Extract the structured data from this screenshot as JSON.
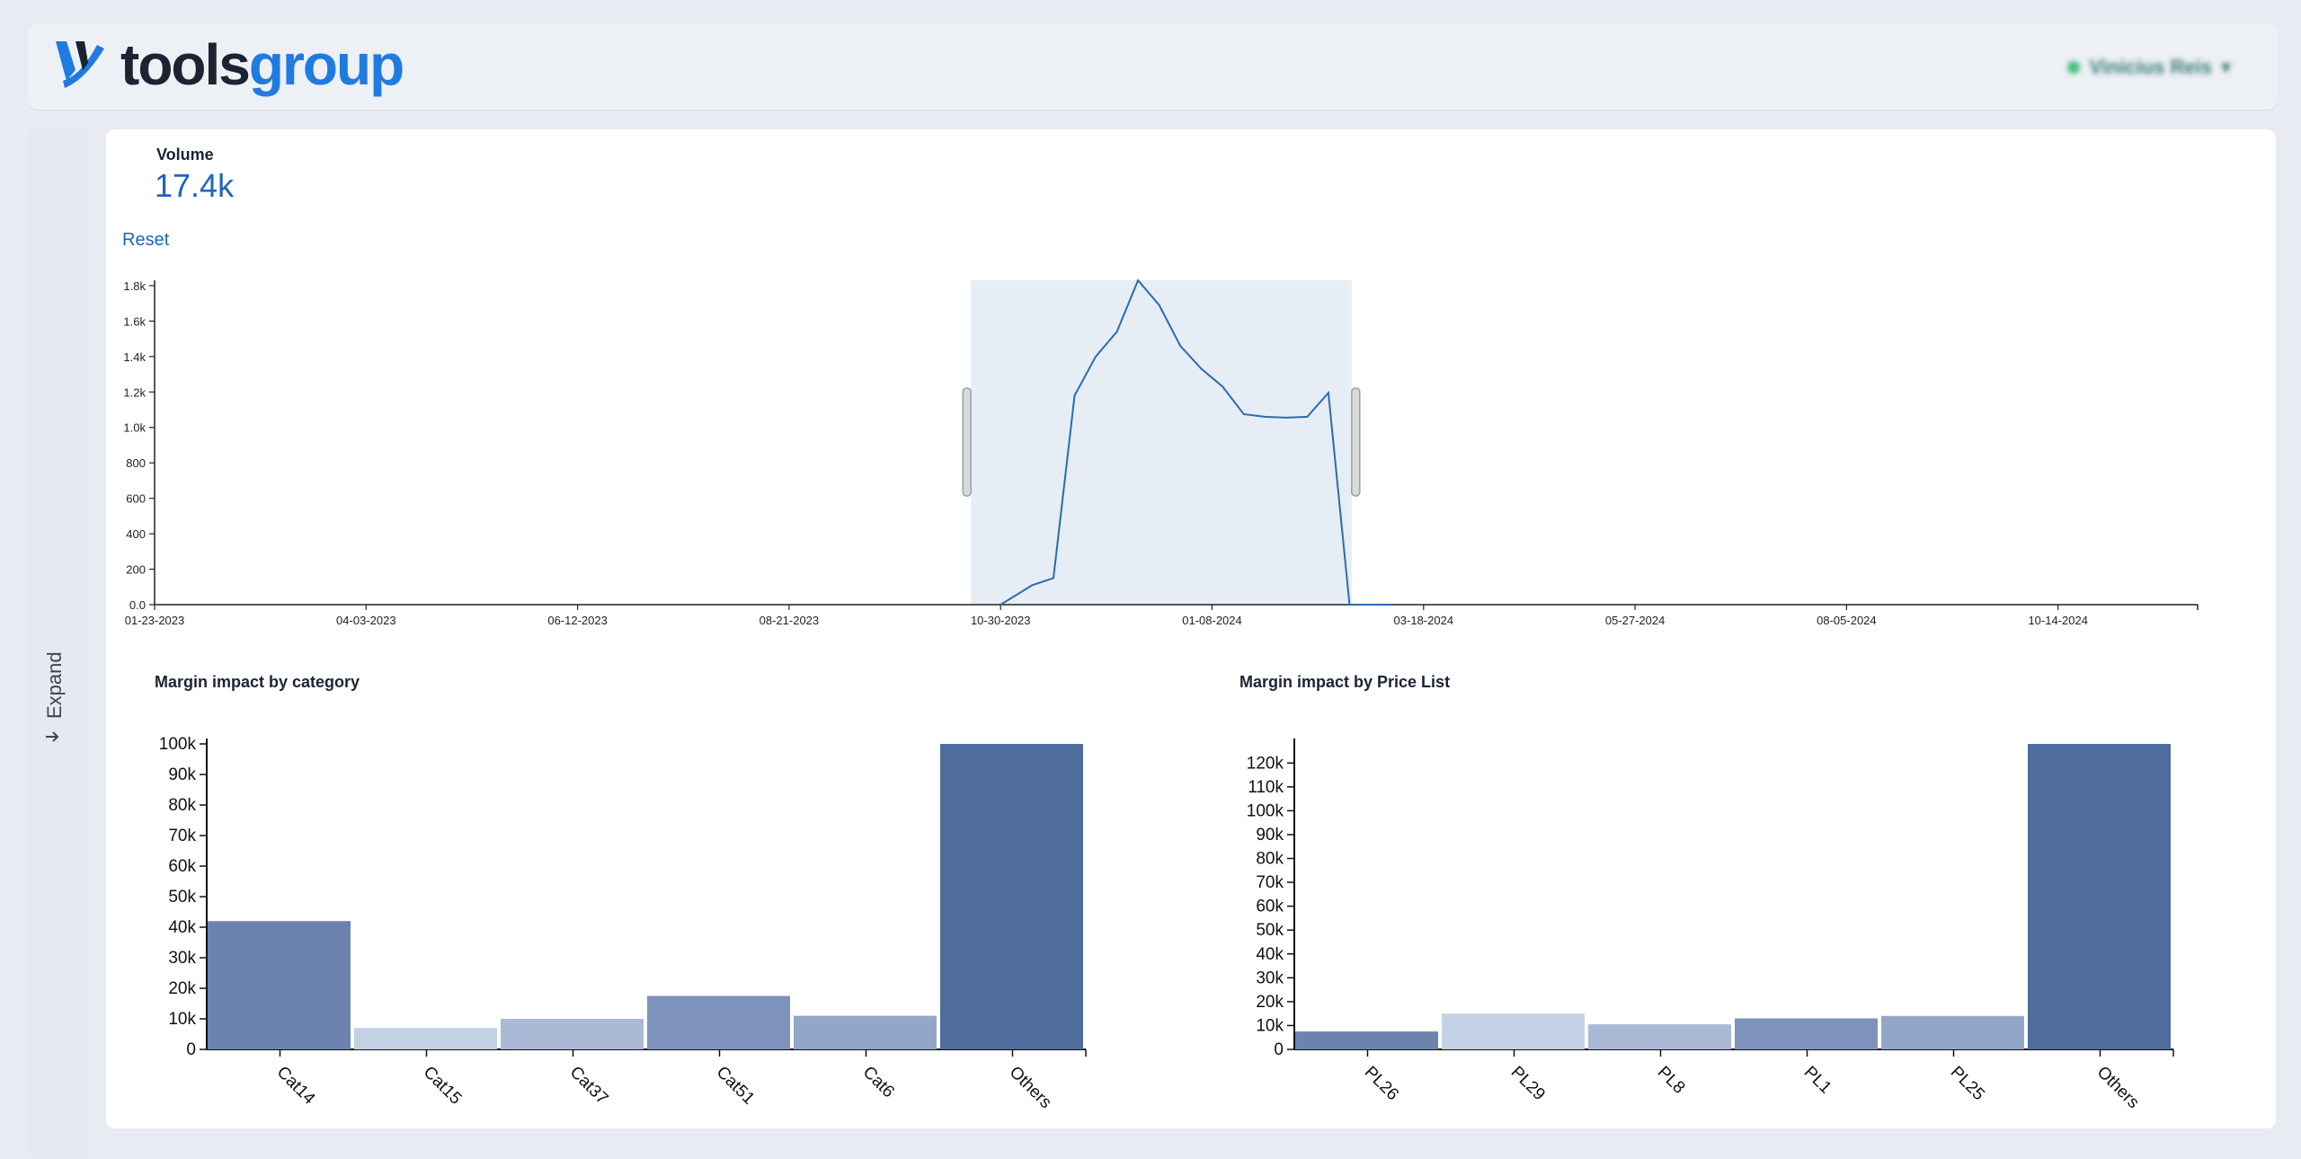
{
  "header": {
    "logo_part1": "tools",
    "logo_part2": "group",
    "user_name": "Vinicius Reis"
  },
  "sidebar": {
    "expand_label": "Expand"
  },
  "kpi": {
    "label": "Volume",
    "value": "17.4k"
  },
  "controls": {
    "reset_label": "Reset"
  },
  "colors": {
    "accent": "#1f66b8",
    "brand": "#1f7be0",
    "line": "#2a6cb0",
    "brush": "#e6edf5",
    "bar_shades": [
      "#6a84ad",
      "#c3d1e4",
      "#a9b9d6",
      "#7e93bb",
      "#93a6c8",
      "#4f6d9c"
    ]
  },
  "chart_data": [
    {
      "type": "line",
      "title": "Volume",
      "x_tick_labels": [
        "01-23-2023",
        "04-03-2023",
        "06-12-2023",
        "08-21-2023",
        "10-30-2023",
        "01-08-2024",
        "03-18-2024",
        "05-27-2024",
        "08-05-2024",
        "10-14-2024"
      ],
      "y_tick_labels": [
        "0.0",
        "200",
        "400",
        "600",
        "800",
        "1.0k",
        "1.2k",
        "1.4k",
        "1.6k",
        "1.8k"
      ],
      "ylim": [
        0,
        1830
      ],
      "xlim_weeks": [
        0,
        96.6
      ],
      "x_weeks": [
        40,
        41.5,
        42.5,
        43.5,
        44.5,
        45.5,
        46.5,
        47.5,
        48.5,
        49.5,
        50.5,
        51.5,
        52.5,
        53.5,
        54.5,
        55.5,
        56.5,
        57.5,
        58.5
      ],
      "values": [
        0,
        110,
        150,
        1180,
        1400,
        1540,
        1830,
        1690,
        1460,
        1330,
        1230,
        1075,
        1060,
        1055,
        1060,
        1195,
        0,
        0,
        0
      ],
      "brush_selection_weeks": [
        38.6,
        56.6
      ]
    },
    {
      "type": "bar",
      "title": "Margin impact by category",
      "categories": [
        "Cat14",
        "Cat15",
        "Cat37",
        "Cat51",
        "Cat6",
        "Others"
      ],
      "values": [
        42000,
        7000,
        10000,
        17500,
        11000,
        100000
      ],
      "ylim": [
        0,
        100000
      ],
      "y_tick_labels": [
        "0",
        "10k",
        "20k",
        "30k",
        "40k",
        "50k",
        "60k",
        "70k",
        "80k",
        "90k",
        "100k"
      ]
    },
    {
      "type": "bar",
      "title": "Margin impact by Price List",
      "categories": [
        "PL26",
        "PL29",
        "PL8",
        "PL1",
        "PL25",
        "Others"
      ],
      "values": [
        7500,
        15000,
        10500,
        13000,
        14000,
        128000
      ],
      "ylim": [
        0,
        128000
      ],
      "y_tick_labels": [
        "0",
        "10k",
        "20k",
        "30k",
        "40k",
        "50k",
        "60k",
        "70k",
        "80k",
        "90k",
        "100k",
        "110k",
        "120k"
      ]
    }
  ]
}
